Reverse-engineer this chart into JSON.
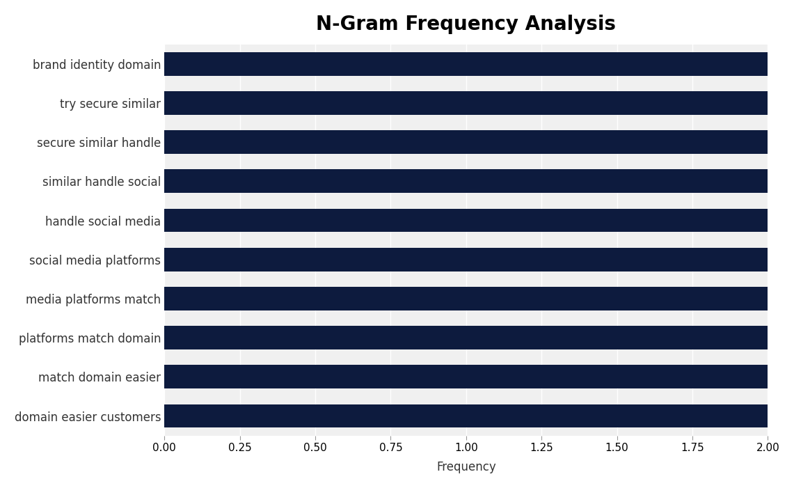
{
  "title": "N-Gram Frequency Analysis",
  "categories": [
    "domain easier customers",
    "match domain easier",
    "platforms match domain",
    "media platforms match",
    "social media platforms",
    "handle social media",
    "similar handle social",
    "secure similar handle",
    "try secure similar",
    "brand identity domain"
  ],
  "values": [
    2,
    2,
    2,
    2,
    2,
    2,
    2,
    2,
    2,
    2
  ],
  "bar_color": "#0d1b3e",
  "background_color": "#ffffff",
  "plot_bg_color": "#f0f0f0",
  "xlabel": "Frequency",
  "xlim": [
    0,
    2.0
  ],
  "xticks": [
    0.0,
    0.25,
    0.5,
    0.75,
    1.0,
    1.25,
    1.5,
    1.75,
    2.0
  ],
  "title_fontsize": 20,
  "label_fontsize": 12,
  "tick_fontsize": 11,
  "bar_height": 0.6
}
